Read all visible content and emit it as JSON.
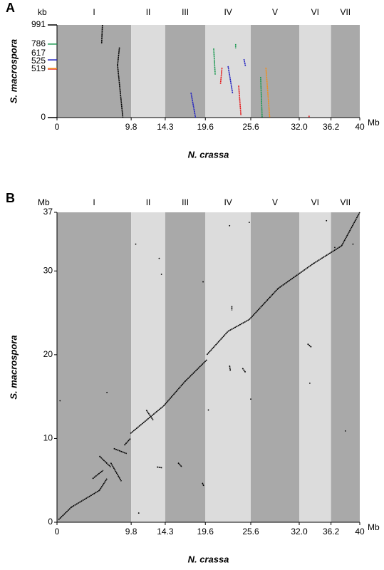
{
  "chart_data": [
    {
      "type": "dotplot",
      "label": "A",
      "categories": [
        "I",
        "II",
        "III",
        "IV",
        "V",
        "VI",
        "VII"
      ],
      "band_colors": [
        "#a9a9a9",
        "#dcdcdc"
      ],
      "xlabel": "N. crassa",
      "ylabel": "S. macrospora",
      "x_unit": "Mb",
      "y_unit": "kb",
      "xlim": [
        0,
        40
      ],
      "xticks": [
        0,
        9.8,
        14.3,
        19.6,
        25.6,
        {
          "value": 32,
          "label": "32.0"
        },
        36.2,
        40
      ],
      "ylim": [
        0,
        991
      ],
      "yticks": [
        0,
        519,
        525,
        617,
        786,
        991
      ],
      "ytick_colors": [
        "#000000",
        "#e41a1c",
        "#f28e1c",
        "#2020c0",
        "#1a9850",
        "#000000"
      ],
      "series": [
        {
          "color": "#000000",
          "segments": [
            [
              6.0,
              991,
              5.9,
              790
            ],
            [
              8.25,
              750,
              8.0,
              560
            ],
            [
              8.0,
              560,
              8.7,
              0
            ]
          ]
        },
        {
          "color": "#2020c0",
          "segments": [
            [
              17.7,
              267,
              18.3,
              0
            ],
            [
              22.6,
              550,
              23.2,
              260
            ],
            [
              24.7,
              625,
              24.9,
              550
            ]
          ]
        },
        {
          "color": "#1a9850",
          "segments": [
            [
              20.7,
              740,
              20.9,
              458
            ],
            [
              23.6,
              786,
              23.6,
              740
            ],
            [
              26.9,
              435,
              27.1,
              0
            ]
          ]
        },
        {
          "color": "#e41a1c",
          "segments": [
            [
              21.8,
              534,
              21.6,
              359
            ],
            [
              24.0,
              343,
              24.3,
              23
            ],
            [
              33.3,
              20,
              33.3,
              0
            ]
          ]
        },
        {
          "color": "#f28e1c",
          "segments": [
            [
              27.6,
              534,
              28.1,
              0
            ]
          ]
        }
      ]
    },
    {
      "type": "dotplot",
      "label": "B",
      "categories": [
        "I",
        "II",
        "III",
        "IV",
        "V",
        "VI",
        "VII"
      ],
      "band_colors": [
        "#a9a9a9",
        "#dcdcdc"
      ],
      "xlabel": "N. crassa",
      "ylabel": "S. macrospora",
      "x_unit": "Mb",
      "y_unit": "Mb",
      "xlim": [
        0,
        40
      ],
      "xticks": [
        0,
        9.8,
        14.3,
        19.6,
        25.6,
        {
          "value": 32,
          "label": "32.0"
        },
        36.2,
        40
      ],
      "ylim": [
        0,
        37
      ],
      "yticks": [
        0,
        10,
        20,
        30,
        37
      ],
      "series": [
        {
          "color": "#000000",
          "segments": [
            [
              0.2,
              0.3,
              1.9,
              1.8
            ],
            [
              1.9,
              1.8,
              5.6,
              3.8
            ],
            [
              5.6,
              3.8,
              6.6,
              5.2
            ],
            [
              4.7,
              5.2,
              6.1,
              6.2
            ],
            [
              5.6,
              7.9,
              7.1,
              6.6
            ],
            [
              7.1,
              7.1,
              8.5,
              4.9
            ],
            [
              7.5,
              8.8,
              9.2,
              8.2
            ],
            [
              8.9,
              9.2,
              9.7,
              10.0
            ],
            [
              9.7,
              10.6,
              14.1,
              13.9
            ],
            [
              11.8,
              13.4,
              12.7,
              12.2
            ],
            [
              14.1,
              13.9,
              16.9,
              16.8
            ],
            [
              16.9,
              16.8,
              19.8,
              19.4
            ],
            [
              19.8,
              20.0,
              22.6,
              22.8
            ],
            [
              22.6,
              22.8,
              25.4,
              24.2
            ],
            [
              25.4,
              24.2,
              29.2,
              27.9
            ],
            [
              29.2,
              27.9,
              33.9,
              30.9
            ],
            [
              33.9,
              30.9,
              37.6,
              33.0
            ],
            [
              37.6,
              33.0,
              40,
              37.0
            ],
            [
              23.1,
              25.8,
              23.1,
              25.3
            ],
            [
              22.8,
              18.7,
              22.9,
              18.1
            ],
            [
              24.5,
              18.4,
              24.9,
              17.9
            ],
            [
              33.1,
              21.3,
              33.6,
              20.9
            ],
            [
              16.0,
              7.1,
              16.5,
              6.6
            ],
            [
              13.2,
              6.6,
              13.9,
              6.5
            ],
            [
              19.2,
              4.7,
              19.4,
              4.3
            ]
          ],
          "x": [
            0.4,
            6.6,
            10.4,
            13.5,
            13.8,
            25.4,
            22.8,
            19.3,
            25.6,
            10.8,
            38.1,
            33.4,
            36.7,
            39.1,
            35.6,
            20.0
          ],
          "values": [
            14.5,
            15.5,
            33.2,
            31.5,
            29.6,
            35.8,
            35.4,
            28.7,
            14.7,
            1.1,
            10.9,
            16.6,
            32.8,
            33.2,
            36.0,
            13.4
          ]
        }
      ]
    }
  ]
}
